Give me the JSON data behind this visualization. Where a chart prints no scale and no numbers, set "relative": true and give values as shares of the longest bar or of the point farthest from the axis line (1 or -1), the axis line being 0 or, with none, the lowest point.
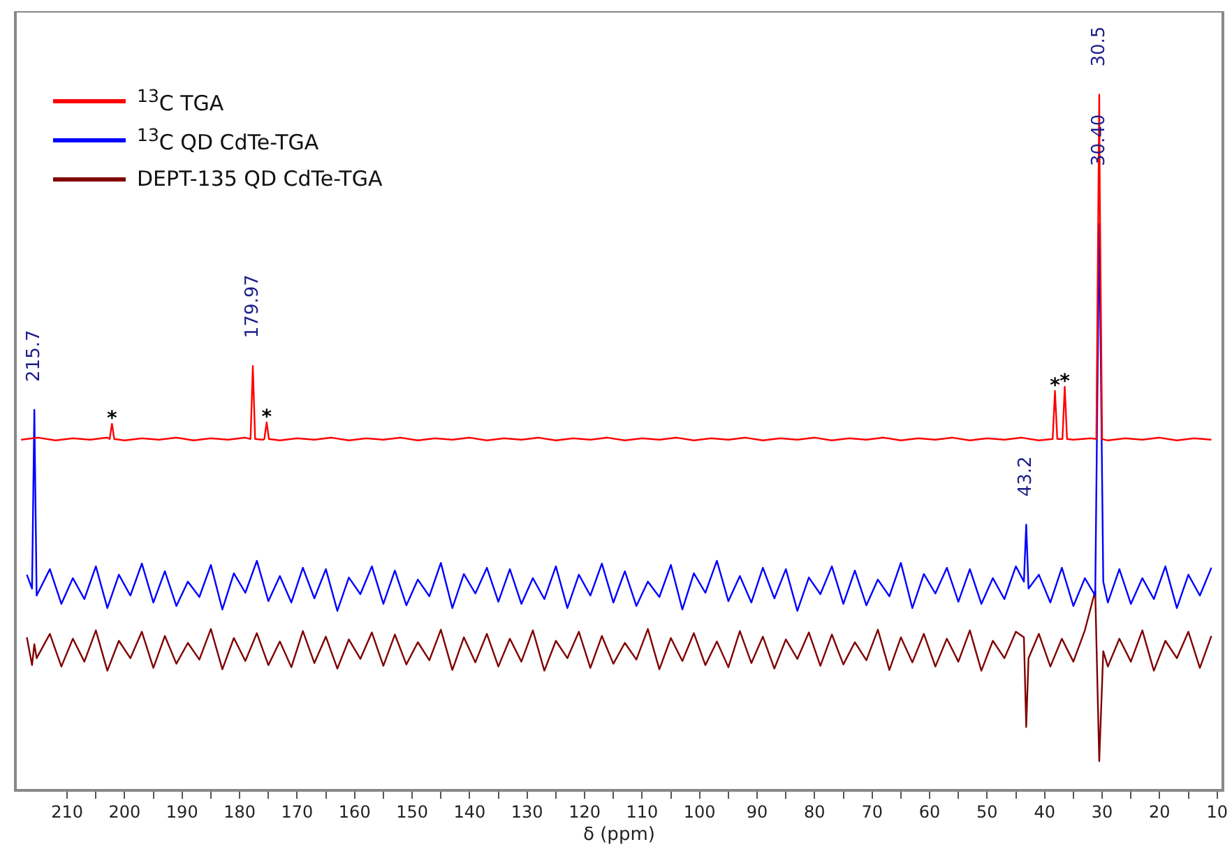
{
  "chart_data": {
    "type": "line",
    "relative": true,
    "xlabel": "δ (ppm)",
    "xlim": [
      219,
      9
    ],
    "xticks": [
      210,
      {
        "value": 205,
        "label": null
      },
      200,
      {
        "value": 195,
        "label": null
      },
      190,
      {
        "value": 185,
        "label": null
      },
      180,
      {
        "value": 175,
        "label": null
      },
      170,
      {
        "value": 165,
        "label": null
      },
      160,
      {
        "value": 155,
        "label": null
      },
      150,
      {
        "value": 145,
        "label": null
      },
      140,
      {
        "value": 135,
        "label": null
      },
      130,
      {
        "value": 125,
        "label": null
      },
      120,
      {
        "value": 115,
        "label": null
      },
      110,
      {
        "value": 105,
        "label": null
      },
      100,
      {
        "value": 95,
        "label": null
      },
      90,
      {
        "value": 85,
        "label": null
      },
      80,
      {
        "value": 75,
        "label": null
      },
      70,
      {
        "value": 65,
        "label": null
      },
      60,
      {
        "value": 55,
        "label": null
      },
      50,
      {
        "value": 45,
        "label": null
      },
      40,
      {
        "value": 35,
        "label": null
      },
      30,
      {
        "value": 25,
        "label": null
      },
      20,
      {
        "value": 15,
        "label": null
      },
      10
    ],
    "grid": false,
    "legend": "top left",
    "marker": "none",
    "line_style": "solid",
    "series": [
      {
        "name": "$^{13}$C TGA",
        "color": "#ff0000",
        "x": [
          218,
          215,
          212,
          209,
          206,
          203,
          202.6,
          202.2,
          201.8,
          200,
          197,
          194,
          191,
          188,
          185,
          182,
          179,
          178.1,
          177.7,
          177.3,
          176,
          175.7,
          175.3,
          174.9,
          173,
          170,
          167,
          164,
          161,
          158,
          155,
          152,
          149,
          146,
          143,
          140,
          137,
          134,
          131,
          128,
          125,
          122,
          119,
          116,
          113,
          110,
          107,
          104,
          101,
          98,
          95,
          92,
          89,
          86,
          83,
          80,
          77,
          74,
          71,
          68,
          65,
          62,
          59,
          56,
          53,
          50,
          47,
          44,
          41,
          38.6,
          38.2,
          37.8,
          36.9,
          36.5,
          36.1,
          35,
          32,
          31,
          30.5,
          30.4,
          30,
          29,
          26,
          23,
          20,
          17,
          14,
          11
        ],
        "values": [
          0.504,
          0.507,
          0.503,
          0.506,
          0.504,
          0.507,
          0.505,
          0.527,
          0.505,
          0.503,
          0.506,
          0.504,
          0.507,
          0.503,
          0.506,
          0.504,
          0.507,
          0.505,
          0.61,
          0.505,
          0.504,
          0.505,
          0.529,
          0.505,
          0.503,
          0.506,
          0.504,
          0.507,
          0.503,
          0.506,
          0.504,
          0.507,
          0.503,
          0.506,
          0.504,
          0.507,
          0.503,
          0.506,
          0.504,
          0.507,
          0.503,
          0.506,
          0.504,
          0.507,
          0.503,
          0.506,
          0.504,
          0.507,
          0.503,
          0.506,
          0.504,
          0.507,
          0.503,
          0.506,
          0.504,
          0.507,
          0.503,
          0.506,
          0.504,
          0.507,
          0.503,
          0.506,
          0.504,
          0.507,
          0.503,
          0.506,
          0.504,
          0.507,
          0.503,
          0.505,
          0.574,
          0.505,
          0.505,
          0.58,
          0.505,
          0.504,
          0.506,
          0.505,
          1.0,
          0.857,
          0.505,
          0.503,
          0.506,
          0.504,
          0.507,
          0.503,
          0.506,
          0.504
        ]
      },
      {
        "name": "$^{13}$C QD CdTe-TGA",
        "color": "#0000ff",
        "x": [
          217,
          216.1,
          215.7,
          215.3,
          213,
          211,
          209,
          207,
          205,
          203,
          201,
          199,
          197,
          195,
          193,
          191,
          189,
          187,
          185,
          183,
          181,
          179,
          177,
          175,
          173,
          171,
          169,
          167,
          165,
          163,
          161,
          159,
          157,
          155,
          153,
          151,
          149,
          147,
          145,
          143,
          141,
          139,
          137,
          135,
          133,
          131,
          129,
          127,
          125,
          123,
          121,
          119,
          117,
          115,
          113,
          111,
          109,
          107,
          105,
          103,
          101,
          99,
          97,
          95,
          93,
          91,
          89,
          87,
          85,
          83,
          81,
          79,
          77,
          75,
          73,
          71,
          69,
          67,
          65,
          63,
          61,
          59,
          57,
          55,
          53,
          51,
          49,
          47,
          45,
          43.6,
          43.2,
          42.8,
          41,
          39,
          37,
          35,
          33,
          31.2,
          30.5,
          29.8,
          29,
          27,
          25,
          23,
          21,
          19,
          17,
          15,
          13,
          11
        ],
        "values": [
          0.31,
          0.29,
          0.547,
          0.28,
          0.318,
          0.268,
          0.305,
          0.275,
          0.322,
          0.262,
          0.31,
          0.28,
          0.326,
          0.27,
          0.315,
          0.265,
          0.3,
          0.278,
          0.324,
          0.26,
          0.312,
          0.284,
          0.33,
          0.272,
          0.308,
          0.27,
          0.32,
          0.276,
          0.318,
          0.258,
          0.306,
          0.282,
          0.322,
          0.268,
          0.316,
          0.266,
          0.303,
          0.279,
          0.327,
          0.262,
          0.311,
          0.283,
          0.32,
          0.271,
          0.318,
          0.268,
          0.305,
          0.275,
          0.322,
          0.262,
          0.31,
          0.28,
          0.326,
          0.27,
          0.315,
          0.265,
          0.3,
          0.278,
          0.324,
          0.26,
          0.312,
          0.284,
          0.33,
          0.272,
          0.308,
          0.27,
          0.32,
          0.276,
          0.318,
          0.258,
          0.306,
          0.282,
          0.322,
          0.268,
          0.316,
          0.266,
          0.303,
          0.279,
          0.327,
          0.262,
          0.311,
          0.283,
          0.32,
          0.271,
          0.318,
          0.268,
          0.305,
          0.275,
          0.322,
          0.3,
          0.382,
          0.29,
          0.31,
          0.27,
          0.32,
          0.265,
          0.305,
          0.28,
          0.814,
          0.3,
          0.27,
          0.318,
          0.268,
          0.305,
          0.275,
          0.322,
          0.262,
          0.31,
          0.28,
          0.32
        ]
      },
      {
        "name": "DEPT-135 QD CdTe-TGA",
        "color": "#800000",
        "x": [
          217,
          216.1,
          215.7,
          215.3,
          213,
          211,
          209,
          207,
          205,
          203,
          201,
          199,
          197,
          195,
          193,
          191,
          189,
          187,
          185,
          183,
          181,
          179,
          177,
          175,
          173,
          171,
          169,
          167,
          165,
          163,
          161,
          159,
          157,
          155,
          153,
          151,
          149,
          147,
          145,
          143,
          141,
          139,
          137,
          135,
          133,
          131,
          129,
          127,
          125,
          123,
          121,
          119,
          117,
          115,
          113,
          111,
          109,
          107,
          105,
          103,
          101,
          99,
          97,
          95,
          93,
          91,
          89,
          87,
          85,
          83,
          81,
          79,
          77,
          75,
          73,
          71,
          69,
          67,
          65,
          63,
          61,
          59,
          57,
          55,
          53,
          51,
          49,
          47,
          45,
          43.6,
          43.2,
          42.8,
          41,
          39,
          37,
          35,
          33,
          31.2,
          30.5,
          29.8,
          29,
          27,
          25,
          23,
          21,
          19,
          17,
          15,
          13,
          11
        ],
        "values": [
          0.22,
          0.18,
          0.21,
          0.19,
          0.225,
          0.178,
          0.218,
          0.185,
          0.23,
          0.172,
          0.215,
          0.19,
          0.228,
          0.176,
          0.222,
          0.182,
          0.212,
          0.188,
          0.232,
          0.174,
          0.219,
          0.186,
          0.226,
          0.18,
          0.214,
          0.177,
          0.229,
          0.183,
          0.221,
          0.175,
          0.217,
          0.189,
          0.227,
          0.179,
          0.224,
          0.181,
          0.213,
          0.187,
          0.231,
          0.173,
          0.22,
          0.184,
          0.225,
          0.178,
          0.218,
          0.185,
          0.23,
          0.172,
          0.215,
          0.19,
          0.228,
          0.176,
          0.222,
          0.182,
          0.212,
          0.188,
          0.232,
          0.174,
          0.219,
          0.186,
          0.226,
          0.18,
          0.214,
          0.177,
          0.229,
          0.183,
          0.221,
          0.175,
          0.217,
          0.189,
          0.227,
          0.179,
          0.224,
          0.181,
          0.213,
          0.187,
          0.231,
          0.173,
          0.22,
          0.184,
          0.225,
          0.178,
          0.218,
          0.185,
          0.23,
          0.172,
          0.215,
          0.19,
          0.228,
          0.22,
          0.091,
          0.19,
          0.225,
          0.178,
          0.218,
          0.185,
          0.23,
          0.287,
          0.042,
          0.2,
          0.178,
          0.218,
          0.185,
          0.23,
          0.172,
          0.215,
          0.19,
          0.228,
          0.176,
          0.222
        ]
      }
    ],
    "annotations": [
      {
        "text": "215.7",
        "x": 215.7,
        "y": 0.547
      },
      {
        "text": "179.97",
        "x": 177.7,
        "y": 0.61
      },
      {
        "text": "43.2",
        "x": 43.2,
        "y": 0.382
      },
      {
        "text": "30.5",
        "x": 30.5,
        "y": 1.0
      },
      {
        "text": "30.40",
        "x": 30.4,
        "y": 0.857
      },
      {
        "text": "*",
        "x": 202.2,
        "y": 0.527
      },
      {
        "text": "*",
        "x": 175.3,
        "y": 0.529
      },
      {
        "text": "*",
        "x": 38.2,
        "y": 0.574
      },
      {
        "text": "*",
        "x": 36.5,
        "y": 0.58
      }
    ]
  }
}
